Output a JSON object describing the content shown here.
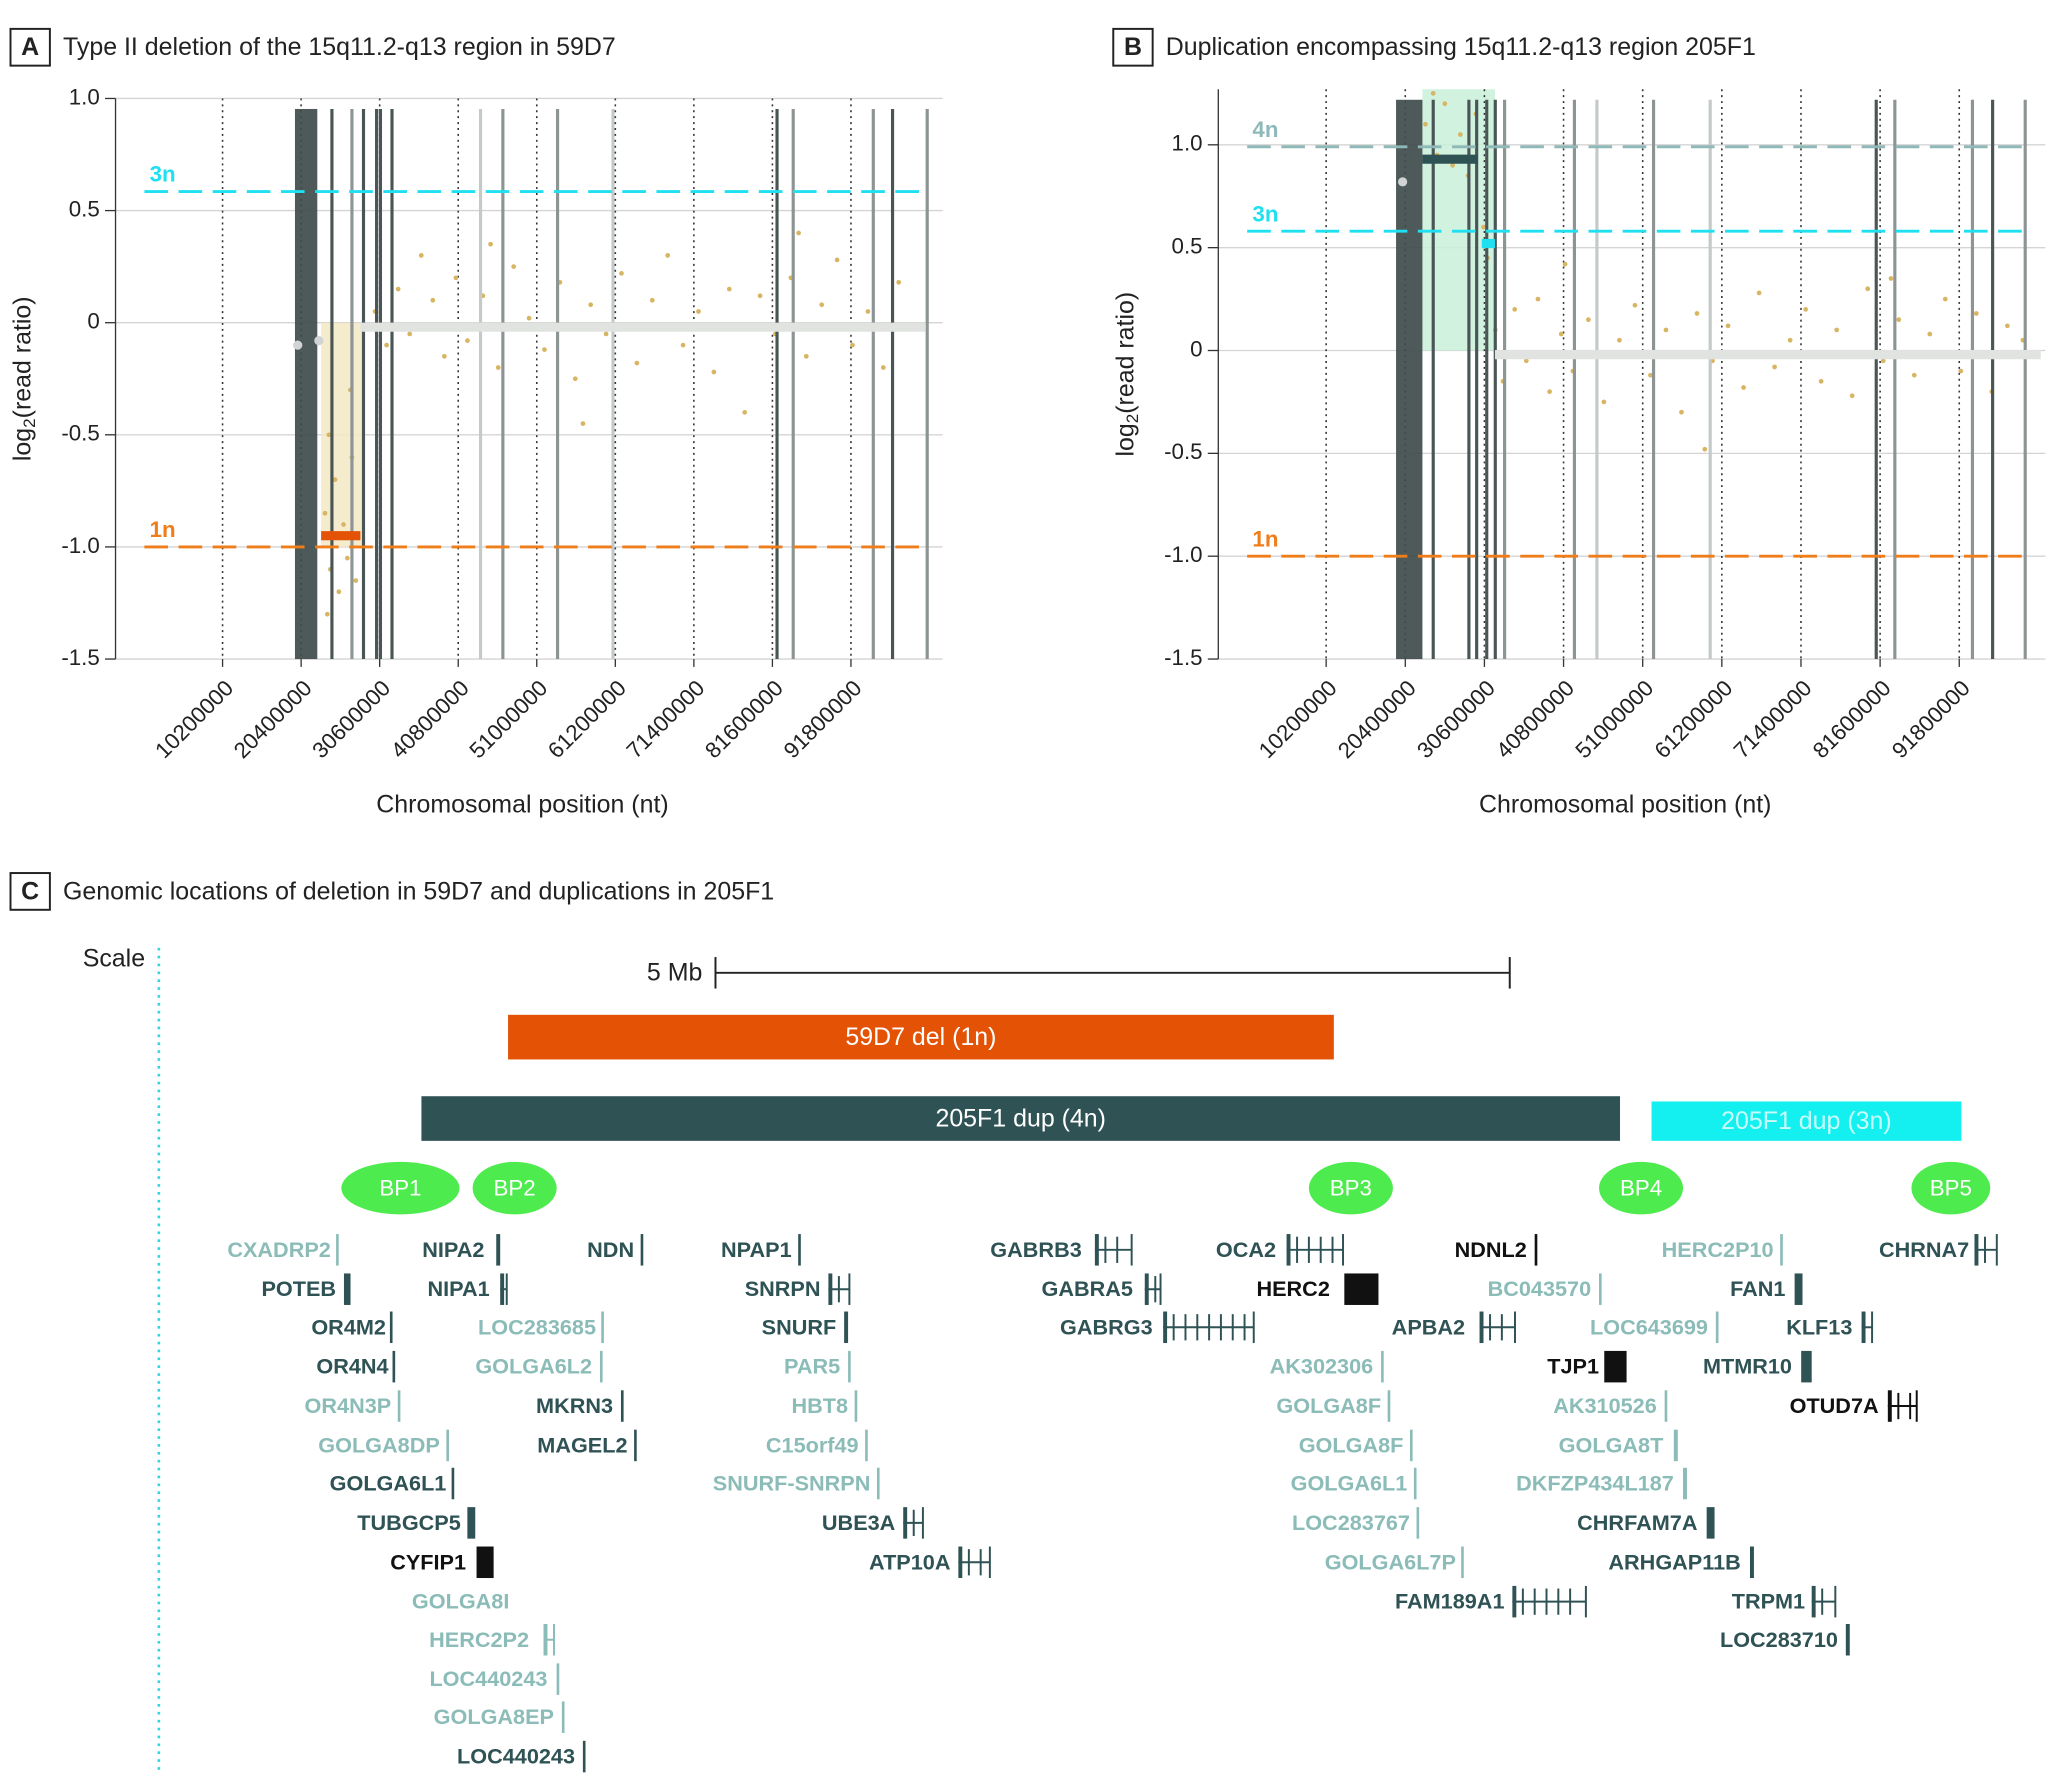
{
  "chart_data": [
    {
      "type": "scatter",
      "label": "A",
      "title": "Type II deletion of the 15q11.2-q13 region in 59D7",
      "xlabel": "Chromosomal position (nt)",
      "ylabel": {
        "base": "log",
        "sub": "2",
        "rest": "(read ratio)"
      },
      "xlim": [
        -3700000,
        103700000
      ],
      "ylim": [
        -1.5,
        1.0
      ],
      "xticks": [
        10200000,
        20400000,
        30600000,
        40800000,
        51000000,
        61200000,
        71400000,
        81600000,
        91800000
      ],
      "yticks": [
        -1.5,
        {
          "value": -1,
          "label": "-1.0"
        },
        -0.5,
        0,
        0.5,
        {
          "value": 1,
          "label": "1.0"
        }
      ],
      "grid": true,
      "points": {
        "color": "#d8b563",
        "x": [
          23500000,
          24200000,
          24800000,
          25300000,
          25900000,
          26400000,
          27000000,
          27500000,
          24000000,
          26800000,
          23800000,
          27800000,
          30000000,
          31500000,
          33000000,
          34500000,
          36000000,
          37500000,
          39000000,
          40500000,
          42000000,
          44000000,
          46000000,
          48000000,
          50000000,
          52000000,
          54000000,
          56000000,
          58000000,
          60000000,
          62000000,
          64000000,
          66000000,
          68000000,
          70000000,
          72000000,
          74000000,
          76000000,
          78000000,
          80000000,
          82000000,
          84000000,
          86000000,
          88000000,
          90000000,
          92000000,
          94000000,
          96000000,
          98000000,
          100000000,
          45000000,
          57000000,
          85000000
        ],
        "y": [
          -0.85,
          -1.1,
          -0.7,
          -1.2,
          -0.9,
          -1.05,
          -0.6,
          -1.15,
          -0.5,
          -0.3,
          -1.3,
          -0.95,
          0.05,
          -0.1,
          0.15,
          -0.05,
          0.3,
          0.1,
          -0.15,
          0.2,
          -0.08,
          0.12,
          -0.2,
          0.25,
          0.02,
          -0.12,
          0.18,
          -0.25,
          0.08,
          -0.05,
          0.22,
          -0.18,
          0.1,
          0.3,
          -0.1,
          0.05,
          -0.22,
          0.15,
          -0.4,
          0.12,
          -0.05,
          0.2,
          -0.15,
          0.08,
          0.28,
          -0.1,
          0.05,
          -0.2,
          0.18,
          -0.02,
          0.35,
          -0.45,
          0.4
        ]
      },
      "band": {
        "x": [
          19600000,
          22500000
        ],
        "color": "#3f4b4b"
      },
      "vlines": [
        {
          "x": 24400000,
          "color": "#4a5656"
        },
        {
          "x": 27000000,
          "color": "#8c9494"
        },
        {
          "x": 28500000,
          "color": "#4a5656"
        },
        {
          "x": 30200000,
          "color": "#4a5656"
        },
        {
          "x": 30700000,
          "color": "#4a5656"
        },
        {
          "x": 32200000,
          "color": "#4a5656"
        },
        {
          "x": 43700000,
          "color": "#c4c9c9"
        },
        {
          "x": 46600000,
          "color": "#8c9494"
        },
        {
          "x": 53700000,
          "color": "#8c9494"
        },
        {
          "x": 60900000,
          "color": "#c4c9c9"
        },
        {
          "x": 82200000,
          "color": "#4a5656"
        },
        {
          "x": 84300000,
          "color": "#8c9494"
        },
        {
          "x": 94700000,
          "color": "#8c9494"
        },
        {
          "x": 97200000,
          "color": "#4a5656"
        },
        {
          "x": 101700000,
          "color": "#8c9494"
        }
      ],
      "shaded": {
        "x": [
          23000000,
          28500000
        ],
        "y": [
          0,
          -1
        ],
        "color": "#f3e8c4"
      },
      "reference_lines": [
        {
          "name": "3n",
          "value": 0.585,
          "color": "#1ee0f0"
        },
        {
          "name": "1n",
          "value": -1,
          "color": "#ee7d1a"
        }
      ],
      "segments": [
        {
          "x": [
            23000000,
            28100000
          ],
          "value": -0.95,
          "color": "#e35205"
        },
        {
          "x": [
            28100000,
            101500000
          ],
          "value": -0.02,
          "color": "#e0e3e0"
        }
      ],
      "markers": {
        "color": "#d0d4d4",
        "x": [
          19960000,
          22700000
        ],
        "y": [
          -0.1,
          -0.08
        ]
      }
    },
    {
      "type": "scatter",
      "label": "B",
      "title": "Duplication encompassing 15q11.2-q13 region 205F1",
      "xlabel": "Chromosomal position (nt)",
      "ylabel": {
        "base": "log",
        "sub": "2",
        "rest": "(read ratio)"
      },
      "xlim": [
        -3700000,
        102900000
      ],
      "ylim": [
        -1.5,
        1.27
      ],
      "xticks": [
        10200000,
        20400000,
        30600000,
        40800000,
        51000000,
        61200000,
        71400000,
        81600000,
        91800000
      ],
      "yticks": [
        -1.5,
        {
          "value": -1,
          "label": "-1.0"
        },
        -0.5,
        0,
        0.5,
        {
          "value": 1,
          "label": "1.0"
        }
      ],
      "grid": true,
      "points": {
        "color": "#d8b563",
        "x": [
          23000000,
          24500000,
          25500000,
          26500000,
          27500000,
          28500000,
          29500000,
          30500000,
          31000000,
          24000000,
          32000000,
          33000000,
          34500000,
          36000000,
          37500000,
          39000000,
          40500000,
          42000000,
          44000000,
          46000000,
          48000000,
          50000000,
          52000000,
          54000000,
          56000000,
          58000000,
          60000000,
          62000000,
          64000000,
          66000000,
          68000000,
          70000000,
          72000000,
          74000000,
          76000000,
          78000000,
          80000000,
          82000000,
          84000000,
          86000000,
          88000000,
          90000000,
          92000000,
          94000000,
          96000000,
          98000000,
          100000000,
          41000000,
          59000000,
          83000000
        ],
        "y": [
          1.1,
          0.95,
          1.2,
          0.9,
          1.05,
          0.85,
          1.15,
          0.6,
          0.45,
          1.25,
          0.1,
          -0.15,
          0.2,
          -0.05,
          0.25,
          -0.2,
          0.08,
          -0.1,
          0.15,
          -0.25,
          0.05,
          0.22,
          -0.12,
          0.1,
          -0.3,
          0.18,
          -0.05,
          0.12,
          -0.18,
          0.28,
          -0.08,
          0.05,
          0.2,
          -0.15,
          0.1,
          -0.22,
          0.3,
          -0.05,
          0.15,
          -0.12,
          0.08,
          0.25,
          -0.1,
          0.18,
          -0.2,
          0.12,
          0.05,
          0.42,
          -0.48,
          0.35
        ]
      },
      "band": {
        "x": [
          19210000,
          22610000
        ],
        "color": "#3f4b4b"
      },
      "vlines": [
        {
          "x": 24000000,
          "color": "#4a5656"
        },
        {
          "x": 28600000,
          "color": "#4a5656"
        },
        {
          "x": 29600000,
          "color": "#4a5656"
        },
        {
          "x": 30900000,
          "color": "#4a5656"
        },
        {
          "x": 32000000,
          "color": "#4a5656"
        },
        {
          "x": 33200000,
          "color": "#8c9494"
        },
        {
          "x": 42200000,
          "color": "#8c9494"
        },
        {
          "x": 45100000,
          "color": "#c4c9c9"
        },
        {
          "x": 52400000,
          "color": "#8c9494"
        },
        {
          "x": 59700000,
          "color": "#c4c9c9"
        },
        {
          "x": 81100000,
          "color": "#4a5656"
        },
        {
          "x": 83500000,
          "color": "#8c9494"
        },
        {
          "x": 93500000,
          "color": "#8c9494"
        },
        {
          "x": 96100000,
          "color": "#4a5656"
        },
        {
          "x": 100300000,
          "color": "#8c9494"
        }
      ],
      "shaded": {
        "x": [
          22610000,
          31960000
        ],
        "y": [
          0,
          1.27
        ],
        "color": "#c8f0d8"
      },
      "reference_lines": [
        {
          "name": "4n",
          "value": 0.99,
          "color": "#8fb9b8"
        },
        {
          "name": "3n",
          "value": 0.58,
          "color": "#1ee0f0"
        },
        {
          "name": "1n",
          "value": -1,
          "color": "#ee7d1a"
        }
      ],
      "segments": [
        {
          "x": [
            22610000,
            29750000
          ],
          "value": 0.93,
          "color": "#2f5255"
        },
        {
          "x": [
            30260000,
            31960000
          ],
          "value": 0.52,
          "color": "#1ee0f0"
        },
        {
          "x": [
            31960000,
            102300000
          ],
          "value": -0.02,
          "color": "#e0e3e0"
        }
      ],
      "markers": {
        "color": "#d0d4d4",
        "x": [
          20060000
        ],
        "y": [
          0.82
        ]
      }
    }
  ],
  "diagram": {
    "label": "C",
    "title": "Genomic locations of deletion in 59D7 and duplications in 205F1",
    "scale_label": "Scale",
    "scale_bar": "5 Mb",
    "bars": [
      {
        "label": "59D7 del (1n)",
        "color": "#e35205"
      },
      {
        "label": "205F1 dup (4n)",
        "color": "#2f5255"
      },
      {
        "label": "205F1 dup (3n)",
        "color": "#14f0f0"
      }
    ],
    "breakpoint_color": "#4deb4d",
    "breakpoints": [
      "BP1",
      "BP2",
      "BP3",
      "BP4",
      "BP5"
    ],
    "genes": [
      {
        "label": "CXADRP2",
        "color": "#8bbcb8"
      },
      {
        "label": "POTEB",
        "color": "#2f5255"
      },
      {
        "label": "OR4M2",
        "color": "#2f5255"
      },
      {
        "label": "OR4N4",
        "color": "#2f5255"
      },
      {
        "label": "OR4N3P",
        "color": "#8bbcb8"
      },
      {
        "label": "GOLGA8DP",
        "color": "#8bbcb8"
      },
      {
        "label": "GOLGA6L1",
        "color": "#2f5255"
      },
      {
        "label": "TUBGCP5",
        "color": "#2f5255"
      },
      {
        "label": "CYFIP1",
        "color": "#111111"
      },
      {
        "label": "GOLGA8I",
        "color": "#8bbcb8"
      },
      {
        "label": "HERC2P2",
        "color": "#8bbcb8"
      },
      {
        "label": "LOC440243",
        "color": "#8bbcb8"
      },
      {
        "label": "GOLGA8EP",
        "color": "#8bbcb8"
      },
      {
        "label": "LOC440243",
        "color": "#2f5255"
      },
      {
        "label": "NIPA2",
        "color": "#2f5255"
      },
      {
        "label": "NIPA1",
        "color": "#2f5255"
      },
      {
        "label": "LOC283685",
        "color": "#8bbcb8"
      },
      {
        "label": "GOLGA6L2",
        "color": "#8bbcb8"
      },
      {
        "label": "MKRN3",
        "color": "#2f5255"
      },
      {
        "label": "MAGEL2",
        "color": "#2f5255"
      },
      {
        "label": "NDN",
        "color": "#2f5255"
      },
      {
        "label": "NPAP1",
        "color": "#2f5255"
      },
      {
        "label": "SNRPN",
        "color": "#2f5255"
      },
      {
        "label": "SNURF",
        "color": "#2f5255"
      },
      {
        "label": "PAR5",
        "color": "#8bbcb8"
      },
      {
        "label": "HBT8",
        "color": "#8bbcb8"
      },
      {
        "label": "C15orf49",
        "color": "#8bbcb8"
      },
      {
        "label": "SNURF-SNRPN",
        "color": "#8bbcb8"
      },
      {
        "label": "UBE3A",
        "color": "#2f5255"
      },
      {
        "label": "ATP10A",
        "color": "#2f5255"
      },
      {
        "label": "GABRB3",
        "color": "#2f5255"
      },
      {
        "label": "GABRA5",
        "color": "#2f5255"
      },
      {
        "label": "GABRG3",
        "color": "#2f5255"
      },
      {
        "label": "OCA2",
        "color": "#2f5255"
      },
      {
        "label": "HERC2",
        "color": "#111111"
      },
      {
        "label": "AK302306",
        "color": "#8bbcb8"
      },
      {
        "label": "GOLGA8F",
        "color": "#8bbcb8"
      },
      {
        "label": "GOLGA8F",
        "color": "#8bbcb8"
      },
      {
        "label": "GOLGA6L1",
        "color": "#8bbcb8"
      },
      {
        "label": "LOC283767",
        "color": "#8bbcb8"
      },
      {
        "label": "GOLGA6L7P",
        "color": "#8bbcb8"
      },
      {
        "label": "FAM189A1",
        "color": "#2f5255"
      },
      {
        "label": "APBA2",
        "color": "#2f5255"
      },
      {
        "label": "NDNL2",
        "color": "#111111"
      },
      {
        "label": "BC043570",
        "color": "#8bbcb8"
      },
      {
        "label": "TJP1",
        "color": "#111111"
      },
      {
        "label": "LOC643699",
        "color": "#8bbcb8"
      },
      {
        "label": "AK310526",
        "color": "#8bbcb8"
      },
      {
        "label": "GOLGA8T",
        "color": "#8bbcb8"
      },
      {
        "label": "DKFZP434L187",
        "color": "#8bbcb8"
      },
      {
        "label": "CHRFAM7A",
        "color": "#2f5255"
      },
      {
        "label": "ARHGAP11B",
        "color": "#2f5255"
      },
      {
        "label": "HERC2P10",
        "color": "#8bbcb8"
      },
      {
        "label": "FAN1",
        "color": "#2f5255"
      },
      {
        "label": "KLF13",
        "color": "#2f5255"
      },
      {
        "label": "MTMR10",
        "color": "#2f5255"
      },
      {
        "label": "OTUD7A",
        "color": "#111111"
      },
      {
        "label": "CHRNA7",
        "color": "#2f5255"
      },
      {
        "label": "TRPM1",
        "color": "#2f5255"
      },
      {
        "label": "LOC283710",
        "color": "#2f5255"
      }
    ]
  }
}
